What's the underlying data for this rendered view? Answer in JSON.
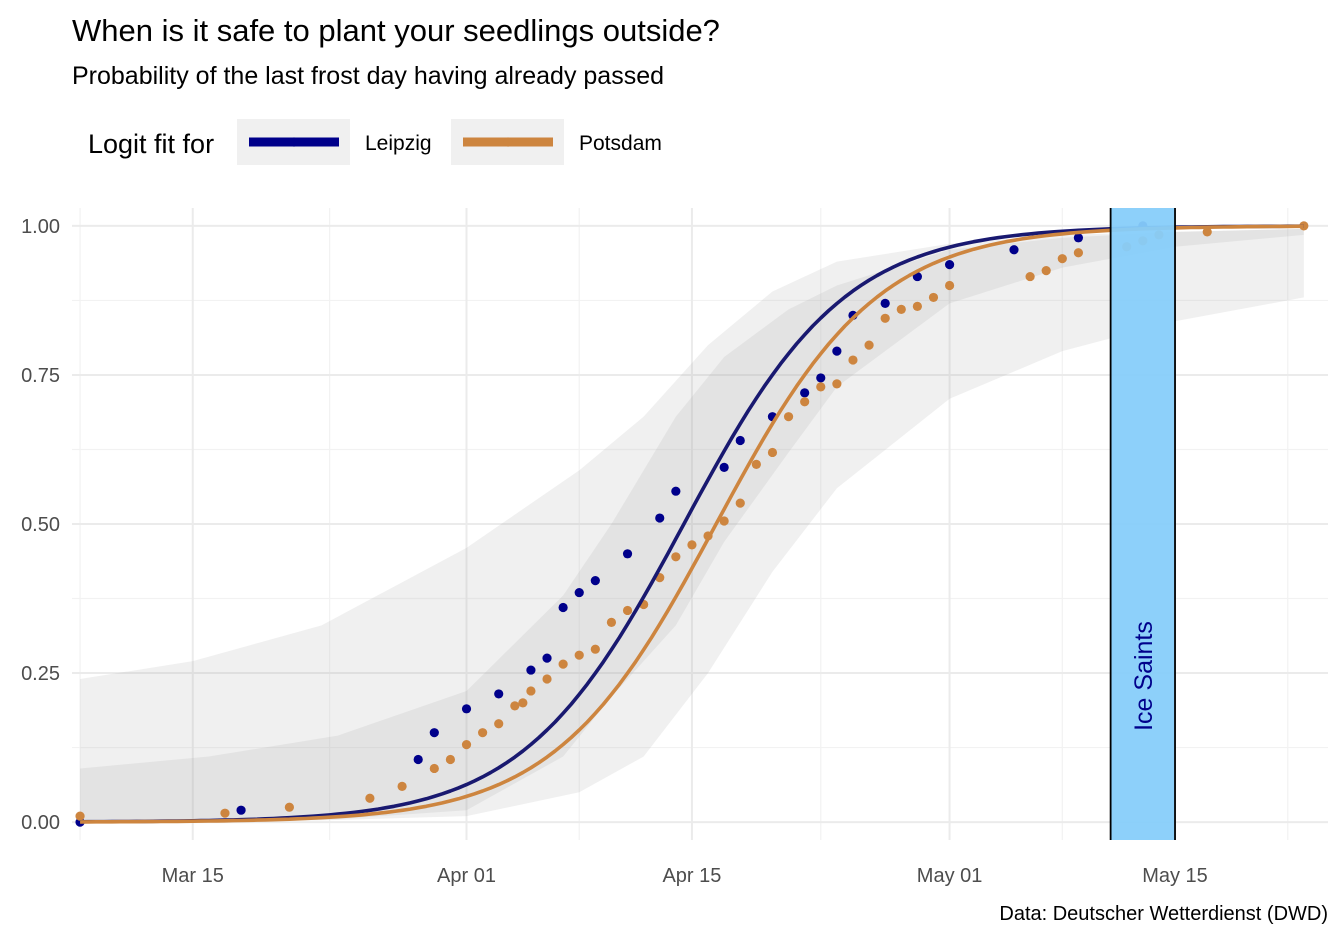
{
  "chart_data": {
    "type": "scatter",
    "title": "When is it safe to plant your seedlings outside?",
    "subtitle": "Probability of the last frost day having already passed",
    "caption": "Data: Deutscher Wetterdienst (DWD)",
    "legend": {
      "title": "Logit fit for",
      "position": "top-left"
    },
    "xlabel": "",
    "ylabel": "",
    "x_unit": "day of year",
    "xlim": [
      66.5,
      144.5
    ],
    "ylim": [
      -0.03,
      1.03
    ],
    "x_ticks": [
      {
        "value": 74,
        "label": "Mar 15"
      },
      {
        "value": 91,
        "label": "Apr 01"
      },
      {
        "value": 105,
        "label": "Apr 15"
      },
      {
        "value": 121,
        "label": "May 01"
      },
      {
        "value": 135,
        "label": "May 15"
      }
    ],
    "x_minor_ticks": [
      67,
      82.5,
      98,
      113,
      128,
      142
    ],
    "y_ticks": [
      {
        "value": 0.0,
        "label": "0.00"
      },
      {
        "value": 0.25,
        "label": "0.25"
      },
      {
        "value": 0.5,
        "label": "0.50"
      },
      {
        "value": 0.75,
        "label": "0.75"
      },
      {
        "value": 1.0,
        "label": "1.00"
      }
    ],
    "y_minor_ticks": [
      0.125,
      0.375,
      0.625,
      0.875
    ],
    "annotations": [
      {
        "type": "band",
        "label": "Ice Saints",
        "x_start": 131,
        "x_end": 135,
        "fill": "#87CEFA",
        "text_color": "#00008B"
      }
    ],
    "series": [
      {
        "name": "Leipzig",
        "color": "#00008B",
        "fit_color": "#191970",
        "fit": {
          "model": "logit",
          "midpoint": 104.5,
          "scale": 5.0
        },
        "ribbon": [
          {
            "x": 67,
            "lo": 0.0,
            "hi": 0.09
          },
          {
            "x": 75,
            "lo": 0.001,
            "hi": 0.11
          },
          {
            "x": 83,
            "lo": 0.005,
            "hi": 0.145
          },
          {
            "x": 91,
            "lo": 0.02,
            "hi": 0.22
          },
          {
            "x": 97,
            "lo": 0.11,
            "hi": 0.38
          },
          {
            "x": 100,
            "lo": 0.21,
            "hi": 0.5
          },
          {
            "x": 104,
            "lo": 0.33,
            "hi": 0.68
          },
          {
            "x": 107,
            "lo": 0.47,
            "hi": 0.78
          },
          {
            "x": 111,
            "lo": 0.62,
            "hi": 0.86
          },
          {
            "x": 114,
            "lo": 0.73,
            "hi": 0.9
          },
          {
            "x": 121,
            "lo": 0.87,
            "hi": 0.96
          },
          {
            "x": 128,
            "lo": 0.93,
            "hi": 0.98
          },
          {
            "x": 135,
            "lo": 0.965,
            "hi": 0.99
          },
          {
            "x": 143,
            "lo": 0.985,
            "hi": 0.995
          }
        ],
        "points": [
          {
            "x": 67,
            "y": 0.0
          },
          {
            "x": 77,
            "y": 0.02
          },
          {
            "x": 88,
            "y": 0.105
          },
          {
            "x": 89,
            "y": 0.15
          },
          {
            "x": 91,
            "y": 0.19
          },
          {
            "x": 93,
            "y": 0.215
          },
          {
            "x": 95,
            "y": 0.255
          },
          {
            "x": 96,
            "y": 0.275
          },
          {
            "x": 97,
            "y": 0.36
          },
          {
            "x": 98,
            "y": 0.385
          },
          {
            "x": 99,
            "y": 0.405
          },
          {
            "x": 101,
            "y": 0.45
          },
          {
            "x": 103,
            "y": 0.51
          },
          {
            "x": 104,
            "y": 0.555
          },
          {
            "x": 107,
            "y": 0.595
          },
          {
            "x": 108,
            "y": 0.64
          },
          {
            "x": 110,
            "y": 0.68
          },
          {
            "x": 112,
            "y": 0.72
          },
          {
            "x": 113,
            "y": 0.745
          },
          {
            "x": 114,
            "y": 0.79
          },
          {
            "x": 115,
            "y": 0.85
          },
          {
            "x": 117,
            "y": 0.87
          },
          {
            "x": 119,
            "y": 0.915
          },
          {
            "x": 121,
            "y": 0.935
          },
          {
            "x": 125,
            "y": 0.96
          },
          {
            "x": 129,
            "y": 0.98
          },
          {
            "x": 133,
            "y": 1.0
          }
        ]
      },
      {
        "name": "Potsdam",
        "color": "#CD853F",
        "fit_color": "#CD853F",
        "fit": {
          "model": "logit",
          "midpoint": 106.5,
          "scale": 5.0
        },
        "ribbon": [
          {
            "x": 67,
            "lo": 0.0,
            "hi": 0.24
          },
          {
            "x": 74,
            "lo": 0.0,
            "hi": 0.27
          },
          {
            "x": 82,
            "lo": 0.003,
            "hi": 0.33
          },
          {
            "x": 91,
            "lo": 0.01,
            "hi": 0.46
          },
          {
            "x": 98,
            "lo": 0.05,
            "hi": 0.59
          },
          {
            "x": 102,
            "lo": 0.11,
            "hi": 0.68
          },
          {
            "x": 106,
            "lo": 0.25,
            "hi": 0.8
          },
          {
            "x": 110,
            "lo": 0.42,
            "hi": 0.89
          },
          {
            "x": 114,
            "lo": 0.56,
            "hi": 0.94
          },
          {
            "x": 121,
            "lo": 0.71,
            "hi": 0.97
          },
          {
            "x": 128,
            "lo": 0.79,
            "hi": 0.985
          },
          {
            "x": 135,
            "lo": 0.84,
            "hi": 0.99
          },
          {
            "x": 143,
            "lo": 0.88,
            "hi": 0.995
          }
        ],
        "points": [
          {
            "x": 67,
            "y": 0.01
          },
          {
            "x": 76,
            "y": 0.015
          },
          {
            "x": 80,
            "y": 0.025
          },
          {
            "x": 85,
            "y": 0.04
          },
          {
            "x": 87,
            "y": 0.06
          },
          {
            "x": 89,
            "y": 0.09
          },
          {
            "x": 90,
            "y": 0.105
          },
          {
            "x": 91,
            "y": 0.13
          },
          {
            "x": 92,
            "y": 0.15
          },
          {
            "x": 93,
            "y": 0.165
          },
          {
            "x": 94,
            "y": 0.195
          },
          {
            "x": 94.5,
            "y": 0.2
          },
          {
            "x": 95,
            "y": 0.22
          },
          {
            "x": 96,
            "y": 0.24
          },
          {
            "x": 97,
            "y": 0.265
          },
          {
            "x": 98,
            "y": 0.28
          },
          {
            "x": 99,
            "y": 0.29
          },
          {
            "x": 100,
            "y": 0.335
          },
          {
            "x": 101,
            "y": 0.355
          },
          {
            "x": 102,
            "y": 0.365
          },
          {
            "x": 103,
            "y": 0.41
          },
          {
            "x": 104,
            "y": 0.445
          },
          {
            "x": 105,
            "y": 0.465
          },
          {
            "x": 106,
            "y": 0.48
          },
          {
            "x": 107,
            "y": 0.505
          },
          {
            "x": 108,
            "y": 0.535
          },
          {
            "x": 109,
            "y": 0.6
          },
          {
            "x": 110,
            "y": 0.62
          },
          {
            "x": 111,
            "y": 0.68
          },
          {
            "x": 112,
            "y": 0.705
          },
          {
            "x": 113,
            "y": 0.73
          },
          {
            "x": 114,
            "y": 0.735
          },
          {
            "x": 115,
            "y": 0.775
          },
          {
            "x": 116,
            "y": 0.8
          },
          {
            "x": 117,
            "y": 0.845
          },
          {
            "x": 118,
            "y": 0.86
          },
          {
            "x": 119,
            "y": 0.865
          },
          {
            "x": 120,
            "y": 0.88
          },
          {
            "x": 121,
            "y": 0.9
          },
          {
            "x": 126,
            "y": 0.915
          },
          {
            "x": 127,
            "y": 0.925
          },
          {
            "x": 128,
            "y": 0.945
          },
          {
            "x": 129,
            "y": 0.955
          },
          {
            "x": 132,
            "y": 0.965
          },
          {
            "x": 133,
            "y": 0.975
          },
          {
            "x": 134,
            "y": 0.985
          },
          {
            "x": 137,
            "y": 0.99
          },
          {
            "x": 143,
            "y": 1.0
          }
        ]
      }
    ]
  }
}
